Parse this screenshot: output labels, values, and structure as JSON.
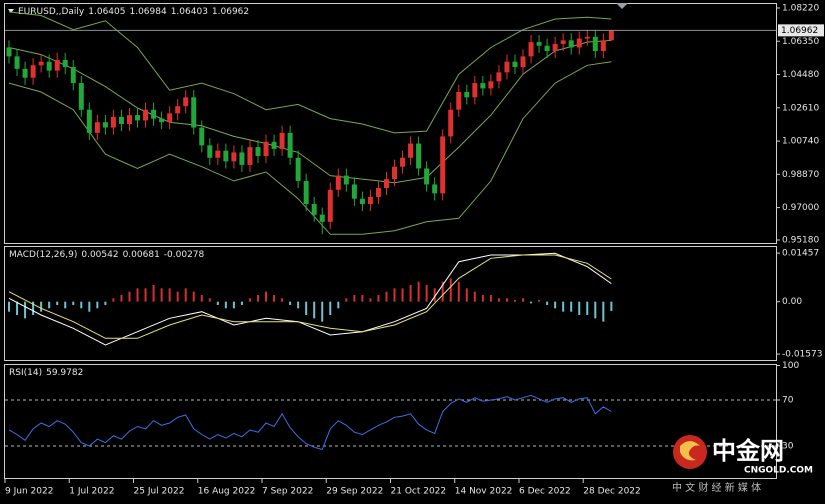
{
  "chart_data": {
    "type": "candlestick",
    "title": "EURUSD,,Daily",
    "xlim": [
      -0.5,
      95.5
    ],
    "xticks": [
      {
        "value": -0.5,
        "label": "9 Jun 2022"
      },
      {
        "value": 7.5,
        "label": "1 Jul 2022"
      },
      {
        "value": 15.5,
        "label": "25 Jul 2022"
      },
      {
        "value": 23.5,
        "label": "16 Aug 2022"
      },
      {
        "value": 31.5,
        "label": "7 Sep 2022"
      },
      {
        "value": 39.5,
        "label": "29 Sep 2022"
      },
      {
        "value": 47.5,
        "label": "21 Oct 2022"
      },
      {
        "value": 55.5,
        "label": "14 Nov 2022"
      },
      {
        "value": 63.5,
        "label": "6 Dec 2022"
      },
      {
        "value": 71.5,
        "label": "28 Dec 2022"
      }
    ],
    "ylim": [
      0.9501,
      1.085
    ],
    "yticks": [
      {
        "value": 0.9518,
        "label": "0.95180"
      },
      {
        "value": 0.97,
        "label": "0.97000"
      },
      {
        "value": 0.9887,
        "label": "0.98870"
      },
      {
        "value": 1.0074,
        "label": "1.00740"
      },
      {
        "value": 1.0261,
        "label": "1.02610"
      },
      {
        "value": 1.0448,
        "label": "1.04480"
      },
      {
        "value": 1.0635,
        "label": "1.06350"
      },
      {
        "value": 1.0822,
        "label": "1.08220"
      }
    ],
    "open": [
      1.06,
      1.055,
      1.048,
      1.043,
      1.05,
      1.052,
      1.047,
      1.053,
      1.049,
      1.04,
      1.025,
      1.012,
      1.018,
      1.015,
      1.021,
      1.017,
      1.022,
      1.019,
      1.025,
      1.02,
      1.018,
      1.023,
      1.027,
      1.032,
      1.015,
      1.005,
      0.998,
      1.002,
      0.996,
      1.001,
      0.994,
      1.004,
      0.999,
      1.007,
      1.003,
      1.012,
      0.998,
      0.985,
      0.972,
      0.966,
      0.962,
      0.98,
      0.988,
      0.983,
      0.975,
      0.972,
      0.976,
      0.981,
      0.986,
      0.993,
      0.998,
      1.006,
      0.992,
      0.983,
      0.978,
      1.01,
      1.025,
      1.035,
      1.032,
      1.04,
      1.037,
      1.041,
      1.046,
      1.052,
      1.049,
      1.055,
      1.063,
      1.061,
      1.058,
      1.062,
      1.064,
      1.06,
      1.065,
      1.066,
      1.058,
      1.06405
    ],
    "high": [
      1.064,
      1.059,
      1.052,
      1.054,
      1.056,
      1.056,
      1.057,
      1.057,
      1.053,
      1.044,
      1.029,
      1.022,
      1.022,
      1.025,
      1.025,
      1.026,
      1.026,
      1.029,
      1.029,
      1.024,
      1.027,
      1.031,
      1.036,
      1.036,
      1.019,
      1.009,
      1.006,
      1.006,
      1.005,
      1.005,
      1.008,
      1.008,
      1.011,
      1.011,
      1.016,
      1.016,
      1.002,
      0.989,
      0.976,
      0.97,
      0.984,
      0.992,
      0.992,
      0.987,
      0.979,
      0.98,
      0.985,
      0.99,
      0.997,
      1.002,
      1.01,
      1.01,
      0.996,
      0.987,
      1.014,
      1.029,
      1.039,
      1.039,
      1.044,
      1.044,
      1.045,
      1.05,
      1.056,
      1.056,
      1.059,
      1.067,
      1.067,
      1.065,
      1.066,
      1.068,
      1.068,
      1.069,
      1.07,
      1.07,
      1.068,
      1.06984
    ],
    "low": [
      1.051,
      1.044,
      1.039,
      1.039,
      1.046,
      1.043,
      1.043,
      1.045,
      1.036,
      1.021,
      1.008,
      1.008,
      1.011,
      1.011,
      1.013,
      1.013,
      1.015,
      1.015,
      1.016,
      1.014,
      1.014,
      1.019,
      1.023,
      1.011,
      1.001,
      0.994,
      0.994,
      0.992,
      0.992,
      0.99,
      0.99,
      0.995,
      0.995,
      0.999,
      0.999,
      0.994,
      0.981,
      0.968,
      0.962,
      0.955,
      0.958,
      0.976,
      0.979,
      0.971,
      0.968,
      0.968,
      0.972,
      0.977,
      0.982,
      0.989,
      0.994,
      0.988,
      0.979,
      0.974,
      0.974,
      1.006,
      1.021,
      1.028,
      1.028,
      1.033,
      1.033,
      1.037,
      1.042,
      1.045,
      1.045,
      1.051,
      1.057,
      1.054,
      1.054,
      1.058,
      1.056,
      1.056,
      1.061,
      1.054,
      1.054,
      1.06403
    ],
    "close": [
      1.055,
      1.048,
      1.043,
      1.05,
      1.052,
      1.047,
      1.053,
      1.049,
      1.04,
      1.025,
      1.012,
      1.018,
      1.015,
      1.021,
      1.017,
      1.022,
      1.019,
      1.025,
      1.02,
      1.018,
      1.023,
      1.027,
      1.032,
      1.015,
      1.005,
      0.998,
      1.002,
      0.996,
      1.001,
      0.994,
      1.004,
      0.999,
      1.007,
      1.003,
      1.012,
      0.998,
      0.985,
      0.972,
      0.966,
      0.962,
      0.98,
      0.988,
      0.983,
      0.975,
      0.972,
      0.976,
      0.981,
      0.986,
      0.993,
      0.998,
      1.006,
      0.992,
      0.983,
      0.978,
      1.01,
      1.025,
      1.035,
      1.032,
      1.04,
      1.037,
      1.041,
      1.046,
      1.052,
      1.049,
      1.055,
      1.063,
      1.061,
      1.058,
      1.062,
      1.064,
      1.06,
      1.065,
      1.066,
      1.058,
      1.064,
      1.06962
    ],
    "up_color": "#e03030",
    "down_color": "#22a83a",
    "bollinger": {
      "x": [
        0,
        4,
        8,
        12,
        16,
        20,
        24,
        28,
        32,
        36,
        40,
        44,
        48,
        52,
        56,
        60,
        64,
        68,
        72,
        75
      ],
      "upper": [
        1.08,
        1.078,
        1.07,
        1.075,
        1.06,
        1.036,
        1.04,
        1.034,
        1.025,
        1.028,
        1.02,
        1.017,
        1.012,
        1.013,
        1.045,
        1.06,
        1.07,
        1.076,
        1.077,
        1.076
      ],
      "middle": [
        1.06,
        1.056,
        1.048,
        1.038,
        1.026,
        1.018,
        1.016,
        1.01,
        1.006,
        1.001,
        0.988,
        0.986,
        0.984,
        0.987,
        1.004,
        1.022,
        1.045,
        1.058,
        1.063,
        1.064
      ],
      "lower": [
        1.04,
        1.035,
        1.025,
        1.0,
        0.992,
        1.0,
        0.993,
        0.985,
        0.99,
        0.975,
        0.955,
        0.955,
        0.957,
        0.962,
        0.964,
        0.985,
        1.02,
        1.04,
        1.05,
        1.052
      ],
      "color": "#7aa84a"
    },
    "macd": {
      "title": "MACD(12,26,9)",
      "ylim": [
        -0.0175,
        0.0167
      ],
      "yticks": [
        0.01457,
        {
          "value": 0,
          "label": "0.00"
        },
        -0.01573
      ],
      "histogram": [
        -0.003,
        -0.004,
        -0.005,
        -0.004,
        -0.003,
        -0.002,
        -0.001,
        -0.002,
        -0.001,
        -0.002,
        -0.003,
        -0.002,
        -0.001,
        0.001,
        0.002,
        0.003,
        0.004,
        0.004,
        0.005,
        0.004,
        0.004,
        0.003,
        0.004,
        0.003,
        0.002,
        0.001,
        -0.001,
        -0.002,
        -0.002,
        -0.001,
        0.001,
        0.002,
        0.003,
        0.002,
        0.001,
        -0.001,
        -0.002,
        -0.004,
        -0.005,
        -0.006,
        -0.004,
        -0.002,
        0.001,
        0.002,
        0.002,
        0.001,
        0.002,
        0.003,
        0.004,
        0.004,
        0.005,
        0.006,
        0.005,
        0.004,
        0.006,
        0.007,
        0.006,
        0.004,
        0.003,
        0.002,
        0.002,
        0.001,
        0.001,
        0.0005,
        0.001,
        -0.0005,
        0.0005,
        -0.001,
        -0.002,
        -0.003,
        -0.003,
        -0.004,
        -0.004,
        -0.005,
        -0.006,
        -0.00278
      ],
      "x": [
        0,
        4,
        8,
        12,
        16,
        20,
        24,
        28,
        32,
        36,
        40,
        44,
        48,
        52,
        56,
        60,
        64,
        68,
        72,
        75
      ],
      "main": [
        0.001,
        -0.004,
        -0.008,
        -0.013,
        -0.009,
        -0.005,
        -0.003,
        -0.007,
        -0.005,
        -0.006,
        -0.01,
        -0.009,
        -0.006,
        -0.002,
        0.012,
        0.014,
        0.014,
        0.0145,
        0.0105,
        0.00542
      ],
      "signal": [
        0.003,
        -0.002,
        -0.006,
        -0.011,
        -0.011,
        -0.007,
        -0.004,
        -0.006,
        -0.006,
        -0.006,
        -0.008,
        -0.009,
        -0.007,
        -0.003,
        0.007,
        0.013,
        0.014,
        0.014,
        0.0115,
        0.00681
      ],
      "hist_up_color": "#d83030",
      "hist_down_color": "#6cc4d6",
      "main_color": "#ffffff",
      "signal_color": "#e8e07a"
    },
    "rsi": {
      "title": "RSI(14)",
      "ylim": [
        2.2,
        101.3
      ],
      "yticks": [
        100,
        70,
        30
      ],
      "levels": [
        70,
        30
      ],
      "values": [
        44,
        40,
        35,
        45,
        50,
        47,
        52,
        49,
        42,
        33,
        30,
        36,
        33,
        39,
        36,
        43,
        47,
        45,
        52,
        48,
        50,
        55,
        57,
        45,
        40,
        36,
        40,
        37,
        41,
        38,
        44,
        42,
        50,
        47,
        58,
        46,
        38,
        32,
        29,
        27,
        45,
        52,
        48,
        42,
        40,
        44,
        48,
        51,
        55,
        56,
        58,
        49,
        44,
        41,
        60,
        67,
        71,
        68,
        72,
        69,
        70,
        71,
        73,
        70,
        72,
        74,
        71,
        68,
        71,
        72,
        68,
        71,
        72,
        58,
        64,
        59.9782
      ],
      "color": "#3b72e6"
    }
  },
  "logo": {
    "name": "中金网",
    "site": "CNGOLD.COM",
    "tagline": "中 文 财 经 新 媒 体"
  }
}
